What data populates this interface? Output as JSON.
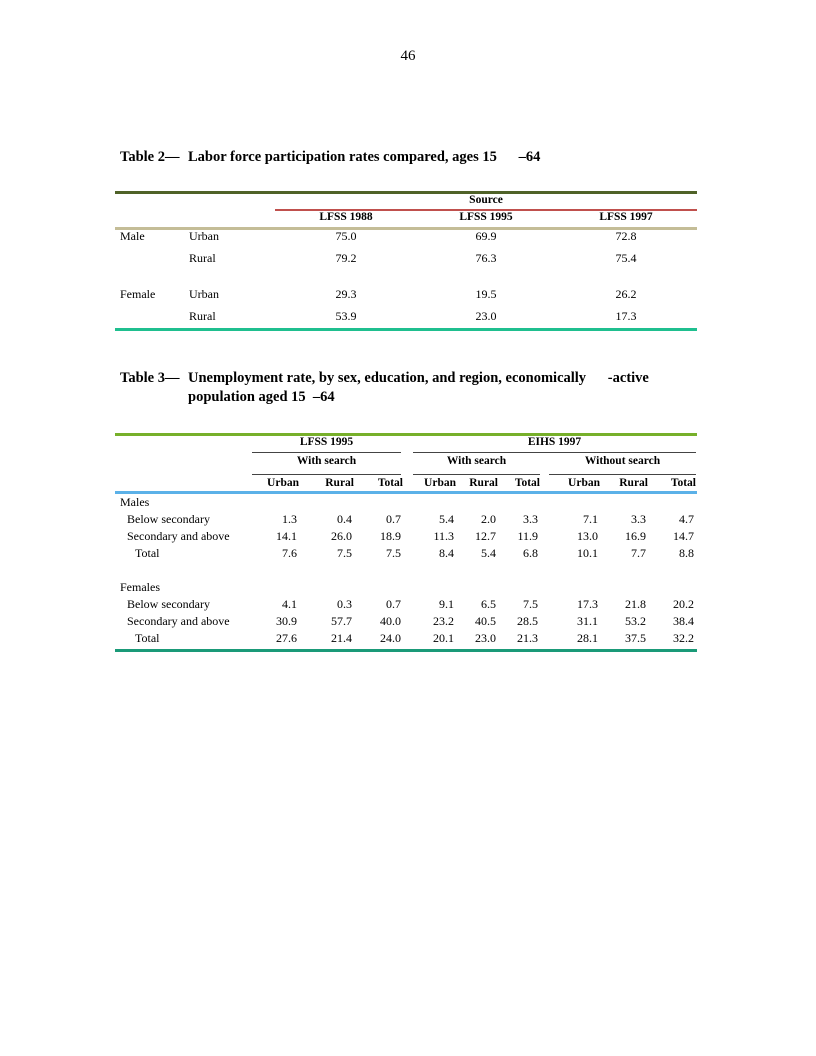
{
  "page_number": "46",
  "table2": {
    "caption_prefix": "Table 2—",
    "caption_text": "Labor force participation rates compared, ages 15      –64",
    "source_header": "Source",
    "columns": [
      "LFSS 1988",
      "LFSS 1995",
      "LFSS 1997"
    ],
    "rows": [
      {
        "sex": "Male",
        "area": "Urban",
        "values": [
          "75.0",
          "69.9",
          "72.8"
        ]
      },
      {
        "sex": "",
        "area": "Rural",
        "values": [
          "79.2",
          "76.3",
          "75.4"
        ]
      },
      {
        "sex": "Female",
        "area": "Urban",
        "values": [
          "29.3",
          "19.5",
          "26.2"
        ]
      },
      {
        "sex": "",
        "area": "Rural",
        "values": [
          "53.9",
          "23.0",
          "17.3"
        ]
      }
    ]
  },
  "table3": {
    "caption_prefix": "Table 3—",
    "caption_line1": "Unemployment rate, by sex, education, and region, economically      -active",
    "caption_line2": "population aged 15  –64",
    "survey_headers": [
      "LFSS 1995",
      "EIHS 1997"
    ],
    "group_headers": [
      "With search",
      "With search",
      "Without search"
    ],
    "subcolumns": [
      "Urban",
      "Rural",
      "Total",
      "Urban",
      "Rural",
      "Total",
      "Urban",
      "Rural",
      "Total"
    ],
    "sections": [
      {
        "title": "Males",
        "rows": [
          {
            "label": "Below secondary",
            "values": [
              "1.3",
              "0.4",
              "0.7",
              "5.4",
              "2.0",
              "3.3",
              "7.1",
              "3.3",
              "4.7"
            ]
          },
          {
            "label": "Secondary and above",
            "values": [
              "14.1",
              "26.0",
              "18.9",
              "11.3",
              "12.7",
              "11.9",
              "13.0",
              "16.9",
              "14.7"
            ]
          },
          {
            "label": "Total",
            "values": [
              "7.6",
              "7.5",
              "7.5",
              "8.4",
              "5.4",
              "6.8",
              "10.1",
              "7.7",
              "8.8"
            ]
          }
        ]
      },
      {
        "title": "Females",
        "rows": [
          {
            "label": "Below secondary",
            "values": [
              "4.1",
              "0.3",
              "0.7",
              "9.1",
              "6.5",
              "7.5",
              "17.3",
              "21.8",
              "20.2"
            ]
          },
          {
            "label": "Secondary and above",
            "values": [
              "30.9",
              "57.7",
              "40.0",
              "23.2",
              "40.5",
              "28.5",
              "31.1",
              "53.2",
              "38.4"
            ]
          },
          {
            "label": "Total",
            "values": [
              "27.6",
              "21.4",
              "24.0",
              "20.1",
              "23.0",
              "21.3",
              "28.1",
              "37.5",
              "32.2"
            ]
          }
        ]
      }
    ]
  },
  "colors": {
    "rule_olive": "#4f6228",
    "rule_red": "#c0504d",
    "rule_khaki": "#c4bd97",
    "rule_teal": "#1fbf8f",
    "rule_green": "#77b02a",
    "rule_dark": "#444444",
    "rule_blue": "#5bb1e8",
    "rule_darkteal": "#1a9a78"
  }
}
